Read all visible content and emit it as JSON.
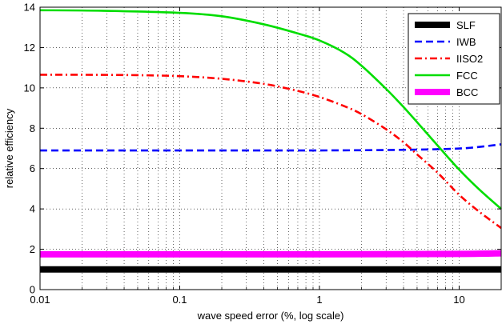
{
  "chart_data": {
    "type": "line",
    "title": "",
    "xlabel": "wave speed error (%, log scale)",
    "ylabel": "relative efficiency",
    "xscale": "log",
    "xlim": [
      0.01,
      20
    ],
    "ylim": [
      0,
      14
    ],
    "grid": true,
    "legend_position": "top-right",
    "xticks": [
      0.01,
      0.1,
      1,
      10
    ],
    "xtick_labels": [
      "0.01",
      "0.1",
      "1",
      "10"
    ],
    "yticks": [
      0,
      2,
      4,
      6,
      8,
      10,
      12,
      14
    ],
    "ytick_labels": [
      "0",
      "2",
      "4",
      "6",
      "8",
      "10",
      "12",
      "14"
    ],
    "series": [
      {
        "name": "SLF",
        "color": "#000000",
        "style": "solid-thick",
        "x": [
          0.01,
          0.1,
          1,
          10,
          20
        ],
        "y": [
          1.0,
          1.0,
          1.0,
          1.0,
          1.0
        ]
      },
      {
        "name": "IWB",
        "color": "#0000ff",
        "style": "dashed",
        "x": [
          0.01,
          0.1,
          1,
          3,
          5,
          8,
          12,
          20
        ],
        "y": [
          6.9,
          6.9,
          6.9,
          6.92,
          6.94,
          6.97,
          7.03,
          7.2
        ]
      },
      {
        "name": "IISO2",
        "color": "#ff0000",
        "style": "dashdot",
        "x": [
          0.01,
          0.02,
          0.05,
          0.1,
          0.2,
          0.4,
          0.7,
          1,
          1.5,
          2,
          3,
          4,
          5,
          7,
          10,
          14,
          20
        ],
        "y": [
          10.65,
          10.65,
          10.63,
          10.58,
          10.45,
          10.2,
          9.85,
          9.55,
          9.1,
          8.7,
          7.95,
          7.3,
          6.7,
          5.8,
          4.7,
          3.85,
          3.05
        ]
      },
      {
        "name": "FCC",
        "color": "#00dd00",
        "style": "solid",
        "x": [
          0.01,
          0.03,
          0.1,
          0.2,
          0.4,
          0.7,
          1,
          1.5,
          2,
          3,
          4,
          5,
          7,
          10,
          14,
          20
        ],
        "y": [
          13.85,
          13.82,
          13.72,
          13.55,
          13.15,
          12.7,
          12.35,
          11.75,
          11.1,
          9.95,
          9.05,
          8.3,
          7.15,
          5.95,
          4.95,
          4.0
        ]
      },
      {
        "name": "BCC",
        "color": "#ff00ff",
        "style": "solid-thick",
        "x": [
          0.01,
          0.1,
          1,
          10,
          20
        ],
        "y": [
          1.75,
          1.75,
          1.75,
          1.77,
          1.8
        ]
      }
    ]
  }
}
